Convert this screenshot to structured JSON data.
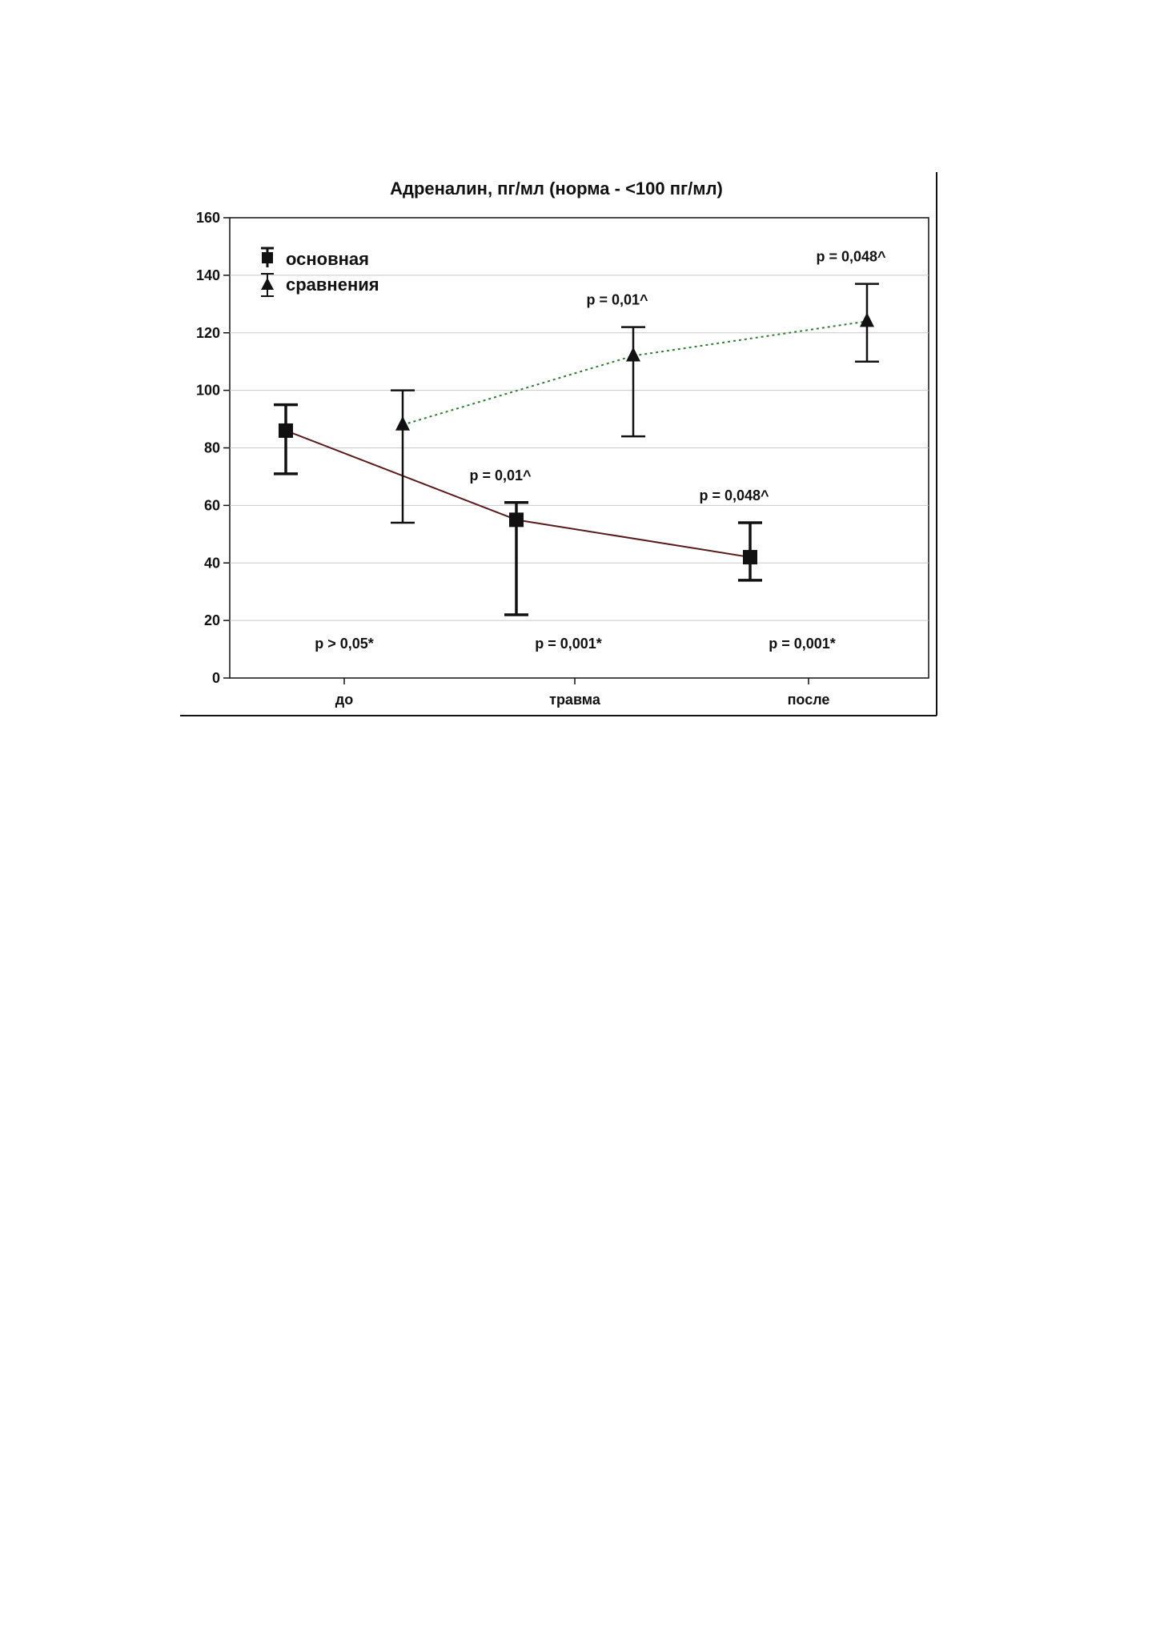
{
  "chart_data": {
    "type": "line",
    "title": "Адреналин, пг/мл (норма - <100 пг/мл)",
    "xlabel": "",
    "ylabel": "",
    "categories": [
      "до",
      "травма",
      "после"
    ],
    "ylim": [
      0,
      160
    ],
    "yticks": [
      "0",
      "20",
      "40",
      "60",
      "80",
      "100",
      "120",
      "140",
      "160"
    ],
    "grid": true,
    "legend_position": "top-left",
    "series": [
      {
        "name": "основная",
        "marker": "square",
        "color": "#5a1a1a",
        "line_style": "solid",
        "values": [
          86,
          55,
          42
        ],
        "error_low": [
          71,
          22,
          34
        ],
        "error_high": [
          95,
          61,
          54
        ]
      },
      {
        "name": "сравнения",
        "marker": "triangle",
        "color": "#2e7d32",
        "line_style": "dotted",
        "values": [
          88,
          112,
          124
        ],
        "error_low": [
          54,
          84,
          110
        ],
        "error_high": [
          100,
          122,
          137
        ]
      }
    ],
    "annotations": [
      {
        "category": "травма",
        "series": "сравнения",
        "text": "p = 0,01^"
      },
      {
        "category": "после",
        "series": "сравнения",
        "text": "p = 0,048^"
      },
      {
        "category": "травма",
        "series": "основная",
        "text": "p = 0,01^"
      },
      {
        "category": "после",
        "series": "основная",
        "text": "p = 0,048^"
      },
      {
        "category": "до",
        "series": "bottom",
        "text": "p > 0,05*"
      },
      {
        "category": "травма",
        "series": "bottom",
        "text": "p = 0,001*"
      },
      {
        "category": "после",
        "series": "bottom",
        "text": "p = 0,001*"
      }
    ]
  }
}
